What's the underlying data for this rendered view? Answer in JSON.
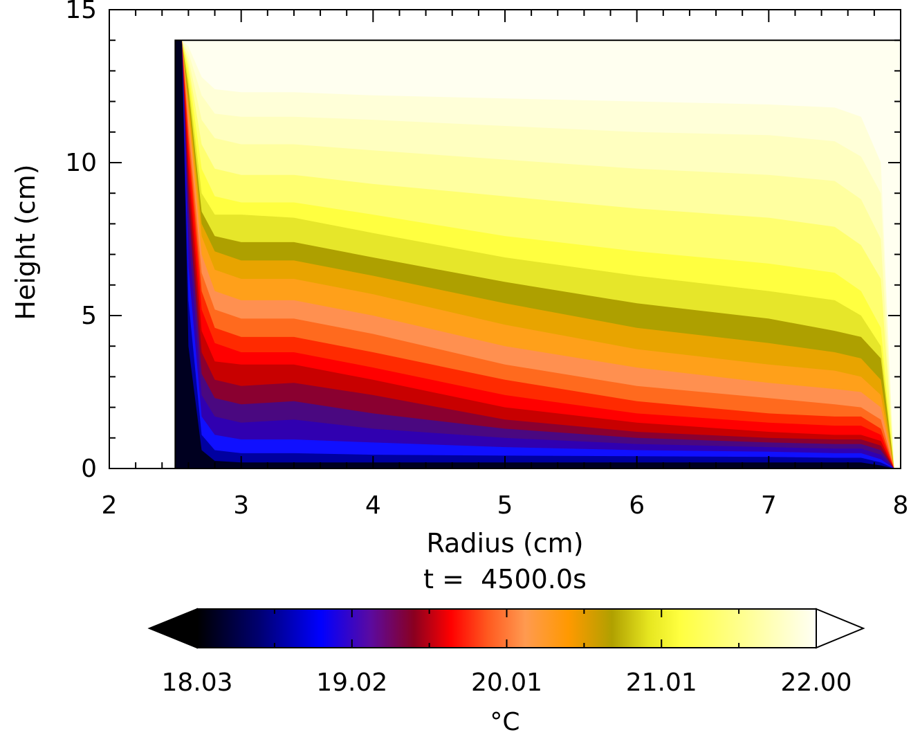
{
  "chart_data": {
    "type": "heatmap",
    "subtype": "filled-contour",
    "title": "t =  4500.0s",
    "xlabel": "Radius (cm)",
    "ylabel": "Height (cm)",
    "xlim": [
      2,
      8
    ],
    "ylim": [
      0,
      15
    ],
    "x_ticks": [
      "2",
      "3",
      "4",
      "5",
      "6",
      "7",
      "8"
    ],
    "y_ticks": [
      "0",
      "5",
      "10",
      "15"
    ],
    "x_tick_values": [
      2,
      3,
      4,
      5,
      6,
      7,
      8
    ],
    "y_tick_values": [
      0,
      5,
      10,
      15
    ],
    "domain": {
      "r_inner": 2.5,
      "r_outer": 8.0,
      "height": 14.0
    },
    "contour_boundaries": {
      "r": [
        2.55,
        2.6,
        2.7,
        2.8,
        3.0,
        3.4,
        4.0,
        5.0,
        6.0,
        7.0,
        7.5,
        7.7,
        7.85,
        7.95
      ],
      "z": [
        [
          14,
          13.8,
          12.8,
          12.4,
          12.3,
          12.3,
          12.2,
          12.1,
          12.0,
          11.9,
          11.8,
          11.5,
          10.0,
          0
        ],
        [
          14,
          13.6,
          12.2,
          11.6,
          11.5,
          11.5,
          11.4,
          11.2,
          11.0,
          10.9,
          10.7,
          10.2,
          9.0,
          0
        ],
        [
          14,
          13.4,
          11.4,
          10.8,
          10.6,
          10.6,
          10.4,
          10.1,
          9.8,
          9.6,
          9.4,
          8.8,
          7.5,
          0
        ],
        [
          14,
          13.2,
          10.6,
          9.8,
          9.6,
          9.6,
          9.3,
          8.9,
          8.5,
          8.2,
          7.9,
          7.3,
          6.2,
          0
        ],
        [
          14,
          13.0,
          9.8,
          8.9,
          8.7,
          8.7,
          8.3,
          7.6,
          7.1,
          6.7,
          6.4,
          5.8,
          4.6,
          0
        ],
        [
          14,
          12.7,
          9.0,
          8.3,
          8.3,
          8.2,
          7.7,
          6.9,
          6.3,
          5.8,
          5.5,
          5.0,
          4.0,
          0
        ],
        [
          14,
          12.4,
          8.4,
          7.6,
          7.4,
          7.4,
          6.9,
          6.1,
          5.4,
          4.9,
          4.5,
          4.3,
          3.6,
          0
        ],
        [
          14,
          12.1,
          8.0,
          7.1,
          6.8,
          6.8,
          6.3,
          5.4,
          4.6,
          4.1,
          3.8,
          3.6,
          2.9,
          0
        ],
        [
          14,
          11.8,
          7.6,
          6.5,
          6.2,
          6.2,
          5.7,
          4.7,
          3.9,
          3.4,
          3.2,
          3.0,
          2.4,
          0
        ],
        [
          14,
          11.6,
          7.0,
          5.8,
          5.5,
          5.5,
          5.0,
          4.0,
          3.3,
          2.8,
          2.6,
          2.5,
          2.0,
          0
        ],
        [
          14,
          11.2,
          6.4,
          5.2,
          4.9,
          4.9,
          4.4,
          3.4,
          2.7,
          2.3,
          2.1,
          2.0,
          1.6,
          0
        ],
        [
          14,
          10.8,
          5.8,
          4.6,
          4.3,
          4.3,
          3.8,
          2.9,
          2.2,
          1.8,
          1.7,
          1.7,
          1.3,
          0
        ],
        [
          14,
          10.4,
          5.2,
          4.1,
          3.8,
          3.8,
          3.3,
          2.4,
          1.8,
          1.5,
          1.4,
          1.4,
          1.1,
          0
        ],
        [
          14,
          9.9,
          4.5,
          3.5,
          3.4,
          3.4,
          2.9,
          2.0,
          1.5,
          1.2,
          1.1,
          1.1,
          0.9,
          0
        ],
        [
          14,
          9.3,
          3.8,
          2.9,
          2.7,
          2.8,
          2.4,
          1.6,
          1.2,
          1.0,
          0.95,
          0.95,
          0.75,
          0
        ],
        [
          14,
          8.6,
          3.1,
          2.3,
          2.1,
          2.2,
          1.8,
          1.3,
          1.0,
          0.85,
          0.8,
          0.8,
          0.6,
          0
        ],
        [
          14,
          7.7,
          2.4,
          1.7,
          1.5,
          1.6,
          1.3,
          1.0,
          0.8,
          0.7,
          0.65,
          0.65,
          0.45,
          0
        ],
        [
          14,
          6.6,
          1.7,
          1.1,
          0.95,
          0.95,
          0.85,
          0.7,
          0.6,
          0.55,
          0.5,
          0.5,
          0.3,
          0
        ],
        [
          14,
          5.5,
          1.1,
          0.6,
          0.5,
          0.5,
          0.45,
          0.42,
          0.4,
          0.38,
          0.35,
          0.35,
          0.2,
          0
        ],
        [
          14,
          4.0,
          0.6,
          0.25,
          0.2,
          0.2,
          0.2,
          0.2,
          0.2,
          0.2,
          0.2,
          0.2,
          0.1,
          0
        ]
      ]
    },
    "colorbar": {
      "label": "°C",
      "tick_labels": [
        "18.03",
        "19.02",
        "20.01",
        "21.01",
        "22.00"
      ],
      "min": 18.03,
      "max": 22.0,
      "extend": "both",
      "stops": [
        {
          "pos": 0.0,
          "color": "#000000"
        },
        {
          "pos": 0.1,
          "color": "#000070"
        },
        {
          "pos": 0.2,
          "color": "#0000ff"
        },
        {
          "pos": 0.28,
          "color": "#5b0aa0"
        },
        {
          "pos": 0.35,
          "color": "#8a0020"
        },
        {
          "pos": 0.41,
          "color": "#ff0000"
        },
        {
          "pos": 0.47,
          "color": "#ff5a20"
        },
        {
          "pos": 0.53,
          "color": "#ff9a50"
        },
        {
          "pos": 0.6,
          "color": "#ff9900"
        },
        {
          "pos": 0.67,
          "color": "#b0a000"
        },
        {
          "pos": 0.73,
          "color": "#e6e620"
        },
        {
          "pos": 0.78,
          "color": "#ffff40"
        },
        {
          "pos": 0.9,
          "color": "#ffffa0"
        },
        {
          "pos": 1.0,
          "color": "#fffff5"
        }
      ],
      "below_color": "#000000",
      "above_color": "#ffffff"
    },
    "band_colors": [
      "#fffff0",
      "#ffffd8",
      "#ffffc0",
      "#ffffa0",
      "#ffff70",
      "#ffff40",
      "#e6e62a",
      "#aea000",
      "#e8a400",
      "#ffa01a",
      "#ff9050",
      "#ff6a1e",
      "#ff2a00",
      "#ff0000",
      "#c80000",
      "#8a0030",
      "#4a0880",
      "#3000b0",
      "#1010ff",
      "#0000a0",
      "#000020"
    ]
  }
}
